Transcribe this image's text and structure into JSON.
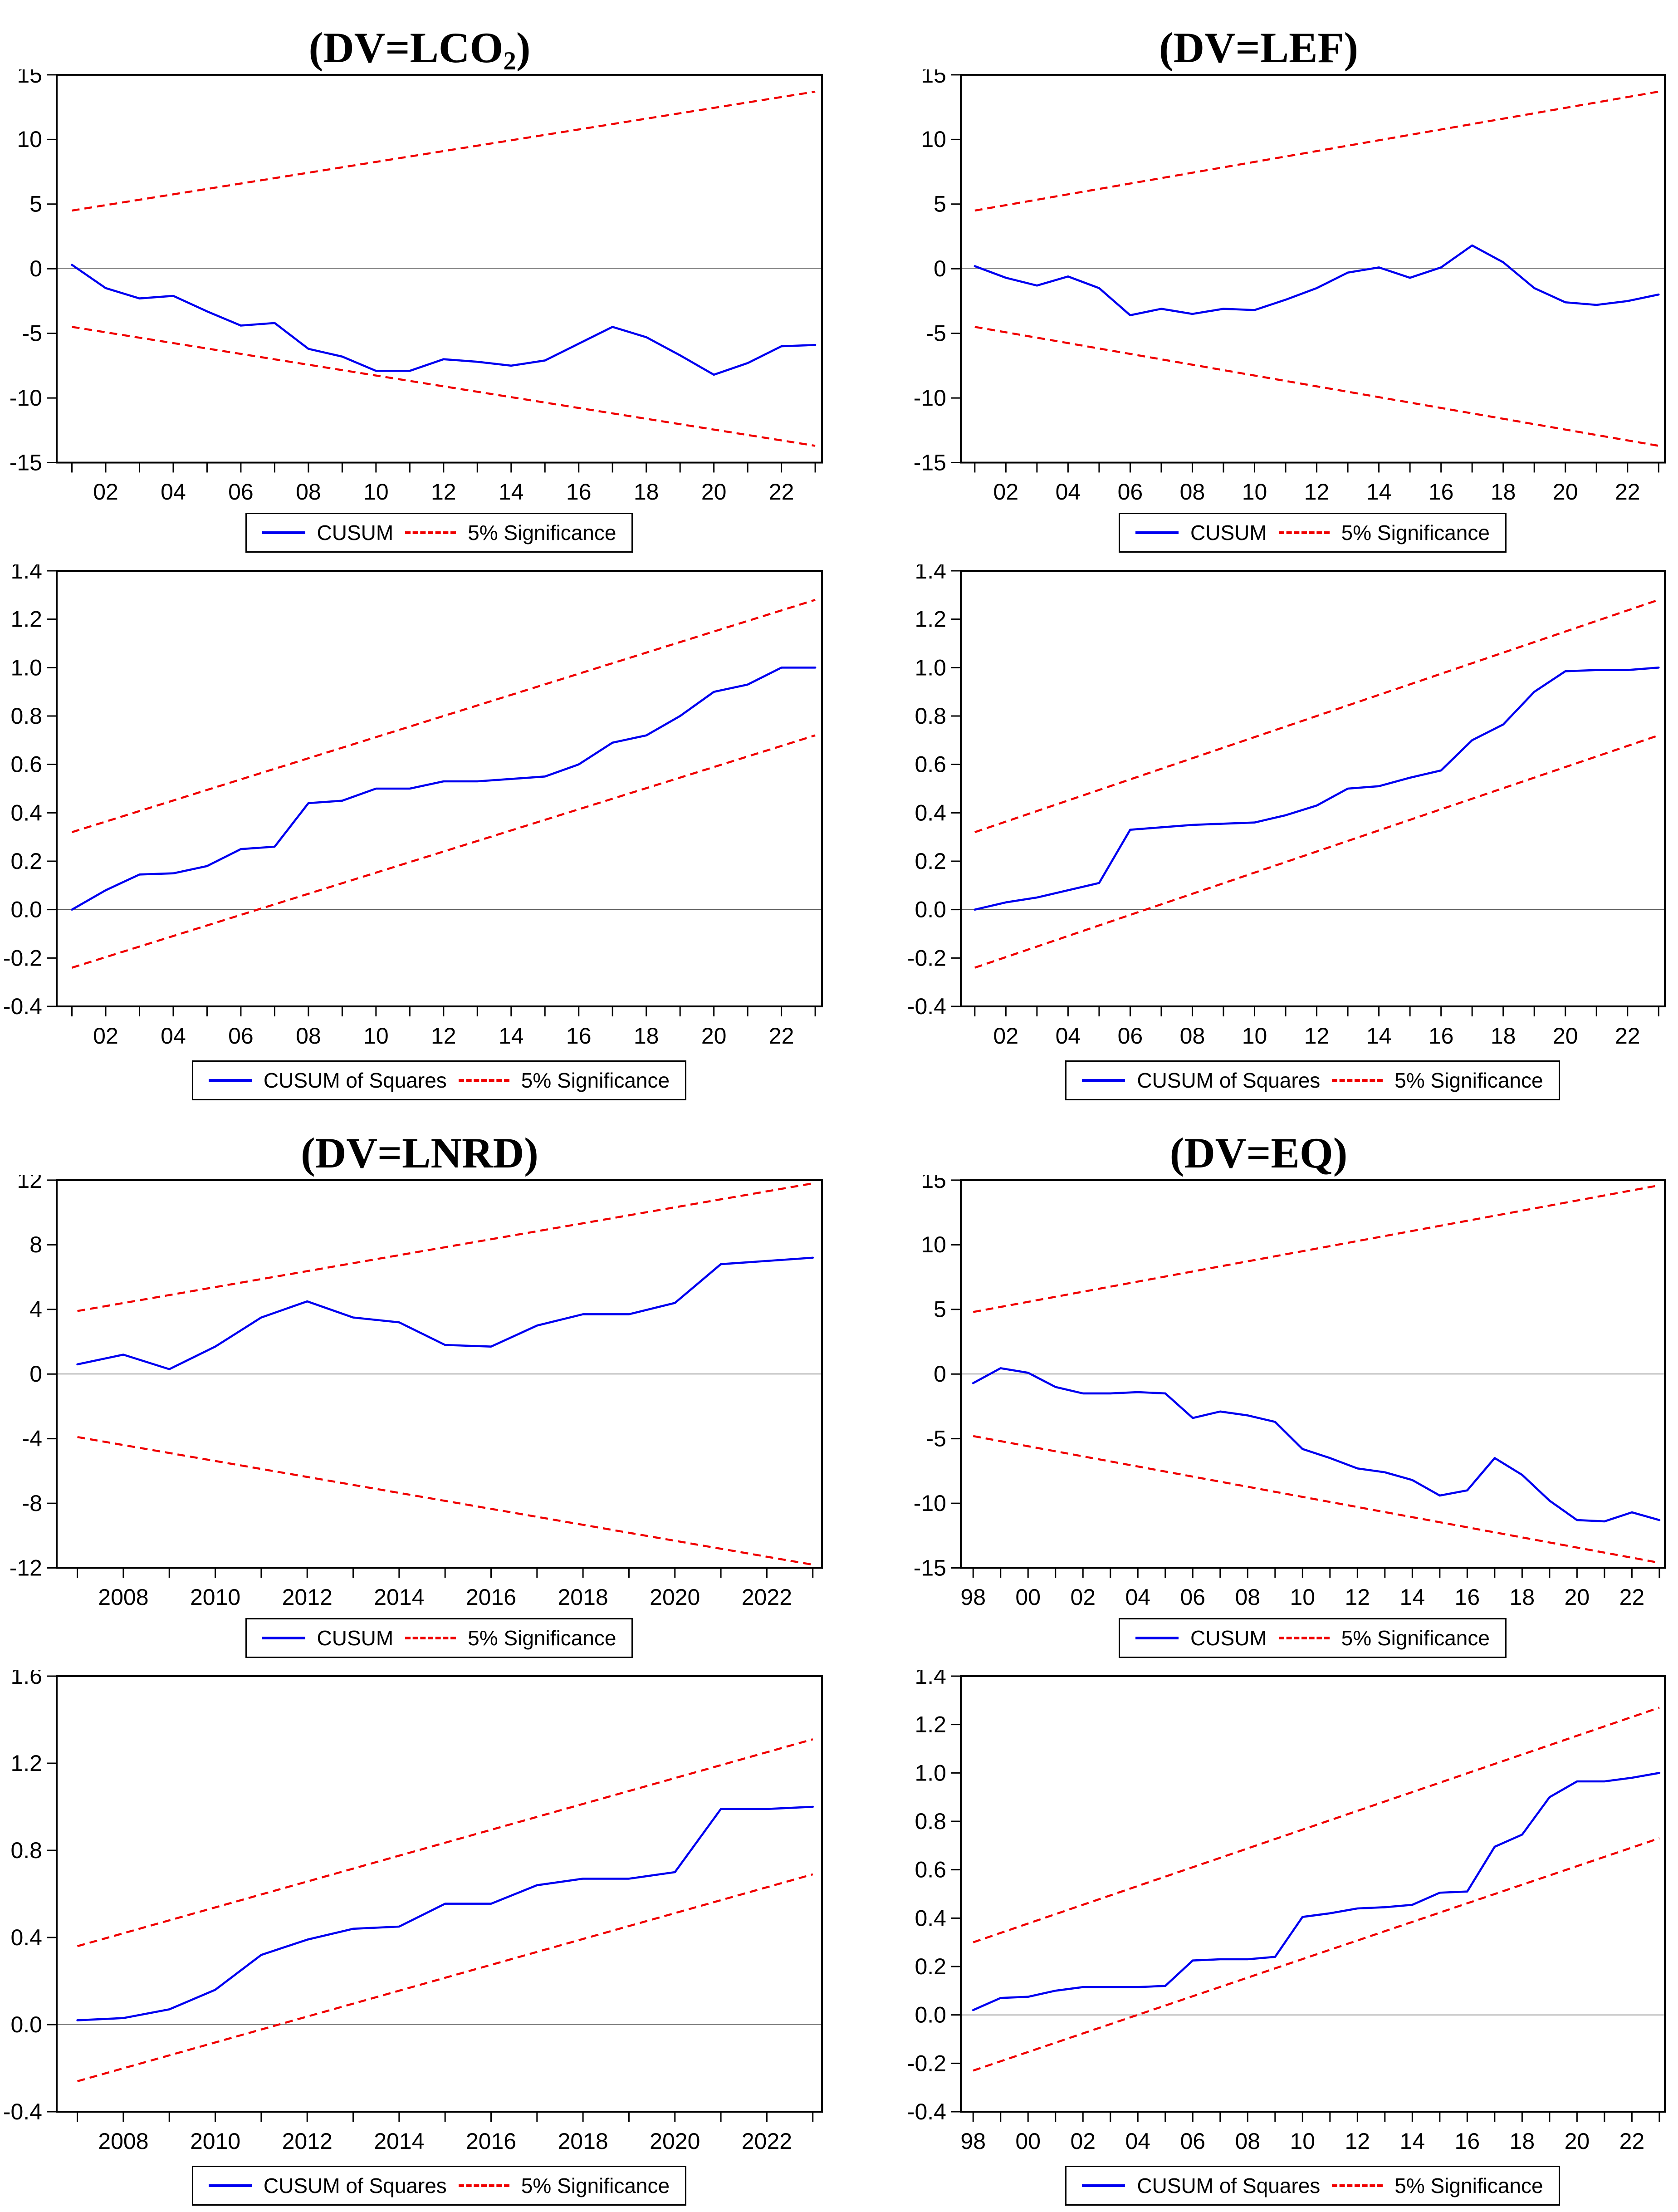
{
  "colors": {
    "series": "#0000f0",
    "significance": "#f00000",
    "zero_line": "#5a5a5a",
    "axis": "#000000",
    "background": "#ffffff"
  },
  "chart_data": [
    {
      "type": "line",
      "title_pre": "(DV=LCO",
      "title_sub": "2",
      "title_post": ")",
      "panel": "CUSUM",
      "x_start": 2001,
      "series": [
        {
          "name": "CUSUM",
          "values": [
            0.3,
            -1.5,
            -2.3,
            -2.1,
            -3.3,
            -4.4,
            -4.2,
            -6.2,
            -6.8,
            -7.9,
            -7.9,
            -7.0,
            -7.2,
            -7.5,
            -7.1,
            -5.8,
            -4.5,
            -5.3,
            -6.7,
            -8.2,
            -7.3,
            -6.0,
            -5.9
          ]
        }
      ],
      "significance_upper": [
        4.5,
        13.7
      ],
      "significance_lower": [
        -4.5,
        -13.7
      ],
      "ylim": [
        -15,
        15
      ],
      "y_tick_values": [
        15,
        10,
        5,
        0,
        -5,
        -10,
        -15
      ],
      "y_tick_labels": [
        "15",
        "10",
        "5",
        "0",
        "-5",
        "-10",
        "-15"
      ],
      "x_tick_years": [
        2002,
        2004,
        2006,
        2008,
        2010,
        2012,
        2014,
        2016,
        2018,
        2020,
        2022
      ],
      "x_tick_labels": [
        "02",
        "04",
        "06",
        "08",
        "10",
        "12",
        "14",
        "16",
        "18",
        "20",
        "22"
      ],
      "legend": [
        "CUSUM",
        "5% Significance"
      ]
    },
    {
      "type": "line",
      "title_pre": "(DV=LEF)",
      "title_sub": "",
      "title_post": "",
      "panel": "CUSUM",
      "x_start": 2001,
      "series": [
        {
          "name": "CUSUM",
          "values": [
            0.2,
            -0.7,
            -1.3,
            -0.6,
            -1.5,
            -3.6,
            -3.1,
            -3.5,
            -3.1,
            -3.2,
            -2.4,
            -1.5,
            -0.3,
            0.1,
            -0.7,
            0.1,
            1.8,
            0.5,
            -1.5,
            -2.6,
            -2.8,
            -2.5,
            -2.0
          ]
        }
      ],
      "significance_upper": [
        4.5,
        13.7
      ],
      "significance_lower": [
        -4.5,
        -13.7
      ],
      "ylim": [
        -15,
        15
      ],
      "y_tick_values": [
        15,
        10,
        5,
        0,
        -5,
        -10,
        -15
      ],
      "y_tick_labels": [
        "15",
        "10",
        "5",
        "0",
        "-5",
        "-10",
        "-15"
      ],
      "x_tick_years": [
        2002,
        2004,
        2006,
        2008,
        2010,
        2012,
        2014,
        2016,
        2018,
        2020,
        2022
      ],
      "x_tick_labels": [
        "02",
        "04",
        "06",
        "08",
        "10",
        "12",
        "14",
        "16",
        "18",
        "20",
        "22"
      ],
      "legend": [
        "CUSUM",
        "5% Significance"
      ]
    },
    {
      "type": "line",
      "title_pre": "",
      "title_sub": "",
      "title_post": "",
      "panel": "CUSUM of Squares",
      "x_start": 2001,
      "series": [
        {
          "name": "CUSUM of Squares",
          "values": [
            0.0,
            0.08,
            0.145,
            0.15,
            0.18,
            0.25,
            0.26,
            0.44,
            0.45,
            0.5,
            0.5,
            0.53,
            0.53,
            0.54,
            0.55,
            0.6,
            0.69,
            0.72,
            0.8,
            0.9,
            0.93,
            1.0,
            1.0
          ]
        }
      ],
      "significance_upper": [
        0.32,
        1.28
      ],
      "significance_lower": [
        -0.24,
        0.72
      ],
      "ylim": [
        -0.4,
        1.4
      ],
      "y_tick_values": [
        1.4,
        1.2,
        1.0,
        0.8,
        0.6,
        0.4,
        0.2,
        0.0,
        -0.2,
        -0.4
      ],
      "y_tick_labels": [
        "1.4",
        "1.2",
        "1.0",
        "0.8",
        "0.6",
        "0.4",
        "0.2",
        "0.0",
        "-0.2",
        "-0.4"
      ],
      "x_tick_years": [
        2002,
        2004,
        2006,
        2008,
        2010,
        2012,
        2014,
        2016,
        2018,
        2020,
        2022
      ],
      "x_tick_labels": [
        "02",
        "04",
        "06",
        "08",
        "10",
        "12",
        "14",
        "16",
        "18",
        "20",
        "22"
      ],
      "legend": [
        "CUSUM of Squares",
        "5% Significance"
      ]
    },
    {
      "type": "line",
      "title_pre": "",
      "title_sub": "",
      "title_post": "",
      "panel": "CUSUM of Squares",
      "x_start": 2001,
      "series": [
        {
          "name": "CUSUM of Squares",
          "values": [
            0.0,
            0.03,
            0.05,
            0.08,
            0.11,
            0.33,
            0.34,
            0.35,
            0.355,
            0.36,
            0.39,
            0.43,
            0.5,
            0.51,
            0.545,
            0.575,
            0.7,
            0.765,
            0.9,
            0.985,
            0.99,
            0.99,
            1.0
          ]
        }
      ],
      "significance_upper": [
        0.32,
        1.28
      ],
      "significance_lower": [
        -0.24,
        0.72
      ],
      "ylim": [
        -0.4,
        1.4
      ],
      "y_tick_values": [
        1.4,
        1.2,
        1.0,
        0.8,
        0.6,
        0.4,
        0.2,
        0.0,
        -0.2,
        -0.4
      ],
      "y_tick_labels": [
        "1.4",
        "1.2",
        "1.0",
        "0.8",
        "0.6",
        "0.4",
        "0.2",
        "0.0",
        "-0.2",
        "-0.4"
      ],
      "x_tick_years": [
        2002,
        2004,
        2006,
        2008,
        2010,
        2012,
        2014,
        2016,
        2018,
        2020,
        2022
      ],
      "x_tick_labels": [
        "02",
        "04",
        "06",
        "08",
        "10",
        "12",
        "14",
        "16",
        "18",
        "20",
        "22"
      ],
      "legend": [
        "CUSUM of Squares",
        "5% Significance"
      ]
    },
    {
      "type": "line",
      "title_pre": "(DV=LNRD)",
      "title_sub": "",
      "title_post": "",
      "panel": "CUSUM",
      "x_start": 2007,
      "series": [
        {
          "name": "CUSUM",
          "values": [
            0.6,
            1.2,
            0.3,
            1.7,
            3.5,
            4.5,
            3.5,
            3.2,
            1.8,
            1.7,
            3.0,
            3.7,
            3.7,
            4.4,
            6.8,
            7.0,
            7.2
          ]
        }
      ],
      "significance_upper": [
        3.9,
        11.8
      ],
      "significance_lower": [
        -3.9,
        -11.8
      ],
      "ylim": [
        -12,
        12
      ],
      "y_tick_values": [
        12,
        8,
        4,
        0,
        -4,
        -8,
        -12
      ],
      "y_tick_labels": [
        "12",
        "8",
        "4",
        "0",
        "-4",
        "-8",
        "-12"
      ],
      "x_tick_years": [
        2008,
        2010,
        2012,
        2014,
        2016,
        2018,
        2020,
        2022
      ],
      "x_tick_labels": [
        "2008",
        "2010",
        "2012",
        "2014",
        "2016",
        "2018",
        "2020",
        "2022"
      ],
      "legend": [
        "CUSUM",
        "5% Significance"
      ]
    },
    {
      "type": "line",
      "title_pre": "(DV=EQ)",
      "title_sub": "",
      "title_post": "",
      "panel": "CUSUM",
      "x_start": 1998,
      "series": [
        {
          "name": "CUSUM",
          "values": [
            -0.7,
            0.45,
            0.1,
            -1.0,
            -1.5,
            -1.5,
            -1.4,
            -1.5,
            -3.4,
            -2.9,
            -3.2,
            -3.7,
            -5.8,
            -6.5,
            -7.3,
            -7.6,
            -8.2,
            -9.4,
            -9.0,
            -6.5,
            -7.8,
            -9.8,
            -11.3,
            -11.4,
            -10.7,
            -11.3
          ]
        }
      ],
      "significance_upper": [
        4.8,
        14.6
      ],
      "significance_lower": [
        -4.8,
        -14.6
      ],
      "ylim": [
        -15,
        15
      ],
      "y_tick_values": [
        15,
        10,
        5,
        0,
        -5,
        -10,
        -15
      ],
      "y_tick_labels": [
        "15",
        "10",
        "5",
        "0",
        "-5",
        "-10",
        "-15"
      ],
      "x_tick_years": [
        1998,
        2000,
        2002,
        2004,
        2006,
        2008,
        2010,
        2012,
        2014,
        2016,
        2018,
        2020,
        2022
      ],
      "x_tick_labels": [
        "98",
        "00",
        "02",
        "04",
        "06",
        "08",
        "10",
        "12",
        "14",
        "16",
        "18",
        "20",
        "22"
      ],
      "legend": [
        "CUSUM",
        "5% Significance"
      ]
    },
    {
      "type": "line",
      "title_pre": "",
      "title_sub": "",
      "title_post": "",
      "panel": "CUSUM of Squares",
      "x_start": 2007,
      "series": [
        {
          "name": "CUSUM of Squares",
          "values": [
            0.02,
            0.03,
            0.07,
            0.16,
            0.32,
            0.39,
            0.44,
            0.45,
            0.555,
            0.555,
            0.64,
            0.67,
            0.67,
            0.7,
            0.99,
            0.99,
            1.0
          ]
        }
      ],
      "significance_upper": [
        0.36,
        1.31
      ],
      "significance_lower": [
        -0.26,
        0.69
      ],
      "ylim": [
        -0.4,
        1.6
      ],
      "y_tick_values": [
        1.6,
        1.2,
        0.8,
        0.4,
        0.0,
        -0.4
      ],
      "y_tick_labels": [
        "1.6",
        "1.2",
        "0.8",
        "0.4",
        "0.0",
        "-0.4"
      ],
      "x_tick_years": [
        2008,
        2010,
        2012,
        2014,
        2016,
        2018,
        2020,
        2022
      ],
      "x_tick_labels": [
        "2008",
        "2010",
        "2012",
        "2014",
        "2016",
        "2018",
        "2020",
        "2022"
      ],
      "legend": [
        "CUSUM of Squares",
        "5% Significance"
      ]
    },
    {
      "type": "line",
      "title_pre": "",
      "title_sub": "",
      "title_post": "",
      "panel": "CUSUM of Squares",
      "x_start": 1998,
      "series": [
        {
          "name": "CUSUM of Squares",
          "values": [
            0.02,
            0.07,
            0.075,
            0.1,
            0.115,
            0.115,
            0.115,
            0.12,
            0.225,
            0.23,
            0.23,
            0.24,
            0.405,
            0.42,
            0.44,
            0.445,
            0.455,
            0.505,
            0.51,
            0.695,
            0.745,
            0.9,
            0.965,
            0.965,
            0.98,
            1.0
          ]
        }
      ],
      "significance_upper": [
        0.3,
        1.27
      ],
      "significance_lower": [
        -0.23,
        0.73
      ],
      "ylim": [
        -0.4,
        1.4
      ],
      "y_tick_values": [
        1.4,
        1.2,
        1.0,
        0.8,
        0.6,
        0.4,
        0.2,
        0.0,
        -0.2,
        -0.4
      ],
      "y_tick_labels": [
        "1.4",
        "1.2",
        "1.0",
        "0.8",
        "0.6",
        "0.4",
        "0.2",
        "0.0",
        "-0.2",
        "-0.4"
      ],
      "x_tick_years": [
        1998,
        2000,
        2002,
        2004,
        2006,
        2008,
        2010,
        2012,
        2014,
        2016,
        2018,
        2020,
        2022
      ],
      "x_tick_labels": [
        "98",
        "00",
        "02",
        "04",
        "06",
        "08",
        "10",
        "12",
        "14",
        "16",
        "18",
        "20",
        "22"
      ],
      "legend": [
        "CUSUM of Squares",
        "5% Significance"
      ]
    }
  ]
}
